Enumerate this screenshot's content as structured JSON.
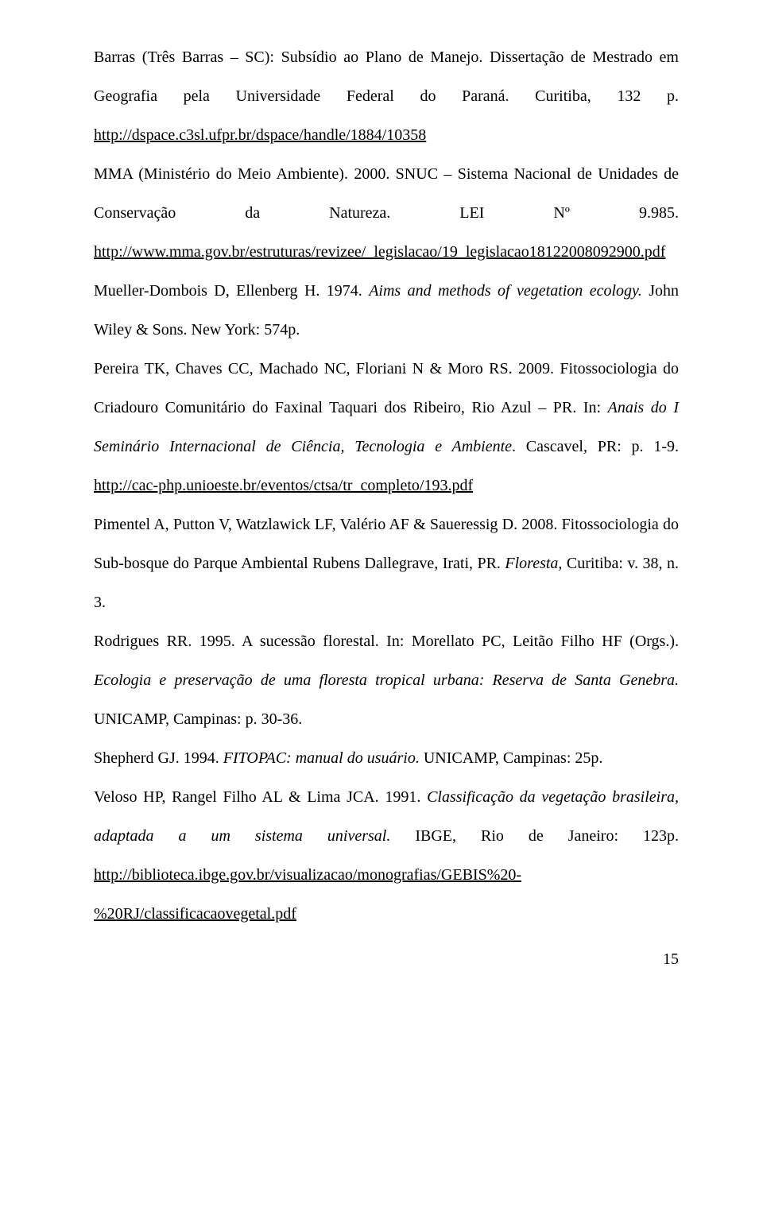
{
  "refs": {
    "p1": "Barras (Três Barras – SC): Subsídio ao Plano de Manejo. Dissertação de Mestrado em Geografia pela Universidade Federal do Paraná. Curitiba, 132 p. ",
    "link1": "http://dspace.c3sl.ufpr.br/dspace/handle/1884/10358",
    "p2a": "MMA (Ministério do Meio Ambiente). 2000. SNUC – Sistema Nacional de Unidades de Conservação da Natureza. LEI Nº 9.985. ",
    "link2": "http://www.mma.gov.br/estruturas/revizee/_legislacao/19_legislacao18122008092900.pdf",
    "p3a": "Mueller-Dombois D, Ellenberg H. 1974. ",
    "p3i": "Aims and methods of vegetation ecology. ",
    "p3b": "John Wiley & Sons. New York: 574p.",
    "p4a": "Pereira TK, Chaves CC, Machado NC, Floriani N & Moro RS. 2009. Fitossociologia do Criadouro Comunitário do Faxinal Taquari dos Ribeiro, Rio Azul – PR. In: ",
    "p4i": "Anais do I Seminário Internacional de Ciência, Tecnologia e Ambiente",
    "p4b": ". Cascavel, PR: p. 1-9. ",
    "link4": "http://cac-php.unioeste.br/eventos/ctsa/tr_completo/193.pdf",
    "p5a": "Pimentel A, Putton V, Watzlawick LF, Valério AF & Saueressig D. 2008. Fitossociologia do Sub-bosque do Parque Ambiental Rubens Dallegrave, Irati, PR. ",
    "p5i": "Floresta",
    "p5b": ", Curitiba: v. 38, n. 3.",
    "p6a": "Rodrigues RR. 1995. A sucessão florestal. In: Morellato PC, Leitão Filho HF (Orgs.). ",
    "p6i": "Ecologia e preservação de uma floresta tropical urbana: Reserva de Santa Genebra. ",
    "p6b": "UNICAMP, Campinas: p. 30-36.",
    "p7a": "Shepherd GJ. 1994. ",
    "p7i": "FITOPAC: manual do usuário. ",
    "p7b": "UNICAMP, Campinas: 25p.",
    "p8a": "Veloso HP, Rangel Filho AL & Lima JCA. 1991. ",
    "p8i": "Classificação da vegetação brasileira, adaptada a um sistema universal. ",
    "p8b": "IBGE, Rio de Janeiro: 123p. ",
    "link8a": "http://biblioteca.ibge.gov.br/visualizacao/monografias/GEBIS%20-",
    "link8b": "%20RJ/classificacaovegetal.pdf"
  },
  "pagenum": "15"
}
